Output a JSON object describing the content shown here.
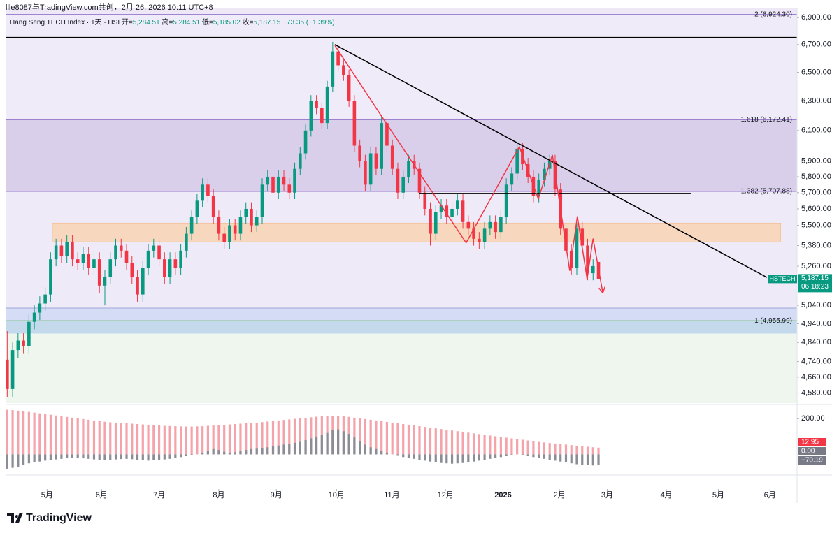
{
  "header": "llle8087与TradingView.com共创，2月 26, 2026 10:11 UTC+8",
  "legend": {
    "name": "Hang Seng TECH Index · 1天 · HSI",
    "items": [
      {
        "label": "开=",
        "value": "5,284.51"
      },
      {
        "label": "高=",
        "value": "5,284.51"
      },
      {
        "label": "低=",
        "value": "5,185.02"
      },
      {
        "label": "收=",
        "value": "5,187.15"
      }
    ],
    "change": "−73.35 (−1.39%)"
  },
  "chart_data": {
    "type": "candlestick",
    "log_scale": true,
    "up_color": "#089981",
    "down_color": "#f23645",
    "xlim": [
      -0.3,
      145.6
    ],
    "ylim": [
      4530,
      6970
    ],
    "xticks": [
      {
        "value": 7.35,
        "label": "5月"
      },
      {
        "value": 17.4,
        "label": "6月"
      },
      {
        "value": 28.0,
        "label": "7月"
      },
      {
        "value": 39.0,
        "label": "8月"
      },
      {
        "value": 49.6,
        "label": "9月"
      },
      {
        "value": 60.7,
        "label": "10月"
      },
      {
        "value": 70.9,
        "label": "11月"
      },
      {
        "value": 80.8,
        "label": "12月"
      },
      {
        "value": 91.4,
        "label": "2026"
      },
      {
        "value": 101.8,
        "label": "2月"
      },
      {
        "value": 110.6,
        "label": "3月"
      },
      {
        "value": 121.5,
        "label": "4月"
      },
      {
        "value": 131.1,
        "label": "5月"
      },
      {
        "value": 140.6,
        "label": "6月"
      }
    ],
    "yticks": [
      {
        "value": 6900,
        "label": "6,900.00"
      },
      {
        "value": 6700,
        "label": "6,700.00"
      },
      {
        "value": 6500,
        "label": "6,500.00"
      },
      {
        "value": 6300,
        "label": "6,300.00"
      },
      {
        "value": 6100,
        "label": "6,100.00"
      },
      {
        "value": 5900,
        "label": "5,900.00"
      },
      {
        "value": 5800,
        "label": "5,800.00"
      },
      {
        "value": 5700,
        "label": "5,700.00"
      },
      {
        "value": 5600,
        "label": "5,600.00"
      },
      {
        "value": 5500,
        "label": "5,500.00"
      },
      {
        "value": 5380,
        "label": "5,380.00"
      },
      {
        "value": 5260,
        "label": "5,260.00"
      },
      {
        "value": 5040,
        "label": "5,040.00"
      },
      {
        "value": 4940,
        "label": "4,940.00"
      },
      {
        "value": 4840,
        "label": "4,840.00"
      },
      {
        "value": 4740,
        "label": "4,740.00"
      },
      {
        "value": 4660,
        "label": "4,660.00"
      },
      {
        "value": 4580,
        "label": "4,580.00"
      }
    ],
    "open": [
      4750,
      4600,
      4800,
      4850,
      4820,
      4950,
      5000,
      5050,
      5100,
      5300,
      5380,
      5320,
      5400,
      5300,
      5280,
      5330,
      5250,
      5300,
      5150,
      5200,
      5300,
      5380,
      5350,
      5280,
      5200,
      5100,
      5250,
      5350,
      5380,
      5300,
      5200,
      5300,
      5250,
      5350,
      5450,
      5550,
      5650,
      5750,
      5680,
      5550,
      5450,
      5400,
      5500,
      5450,
      5550,
      5600,
      5500,
      5550,
      5750,
      5800,
      5700,
      5800,
      5750,
      5700,
      5850,
      5950,
      6100,
      6300,
      6250,
      6150,
      6400,
      6650,
      6550,
      6480,
      6300,
      6000,
      5900,
      5750,
      5950,
      5850,
      6150,
      6000,
      5850,
      5700,
      5800,
      5900,
      5850,
      5700,
      5600,
      5450,
      5580,
      5620,
      5550,
      5600,
      5650,
      5520,
      5480,
      5420,
      5400,
      5480,
      5520,
      5460,
      5550,
      5750,
      5820,
      5980,
      5880,
      5800,
      5680,
      5780,
      5850,
      5900,
      5720,
      5480,
      5350,
      5250,
      5480,
      5380,
      5220,
      5284.51
    ],
    "high": [
      4900,
      4840,
      4890,
      4890,
      4990,
      5040,
      5090,
      5140,
      5340,
      5420,
      5420,
      5440,
      5440,
      5340,
      5370,
      5370,
      5340,
      5340,
      5240,
      5340,
      5420,
      5420,
      5390,
      5320,
      5240,
      5290,
      5390,
      5420,
      5420,
      5340,
      5340,
      5340,
      5390,
      5490,
      5590,
      5690,
      5790,
      5790,
      5720,
      5590,
      5490,
      5540,
      5540,
      5590,
      5640,
      5640,
      5590,
      5790,
      5840,
      5840,
      5840,
      5840,
      5790,
      5890,
      5990,
      6140,
      6340,
      6340,
      6290,
      6440,
      6720,
      6690,
      6590,
      6520,
      6340,
      6040,
      5940,
      5990,
      5990,
      6190,
      6190,
      6040,
      5890,
      5840,
      5940,
      5940,
      5890,
      5740,
      5640,
      5620,
      5660,
      5660,
      5640,
      5690,
      5690,
      5560,
      5520,
      5460,
      5520,
      5560,
      5560,
      5590,
      5790,
      5860,
      6020,
      6020,
      5920,
      5840,
      5820,
      5890,
      5940,
      5940,
      5760,
      5520,
      5390,
      5520,
      5520,
      5420,
      5300,
      5284.51
    ],
    "low": [
      4560,
      4560,
      4760,
      4780,
      4780,
      4910,
      4960,
      5010,
      5060,
      5260,
      5280,
      5280,
      5260,
      5240,
      5240,
      5210,
      5210,
      5110,
      5040,
      5160,
      5260,
      5310,
      5240,
      5160,
      5060,
      5060,
      5210,
      5310,
      5260,
      5160,
      5160,
      5210,
      5210,
      5310,
      5410,
      5510,
      5610,
      5640,
      5510,
      5410,
      5360,
      5360,
      5410,
      5410,
      5510,
      5460,
      5460,
      5510,
      5710,
      5660,
      5660,
      5710,
      5660,
      5660,
      5810,
      5910,
      6060,
      6210,
      6110,
      6110,
      6360,
      6510,
      6440,
      6260,
      5960,
      5860,
      5710,
      5710,
      5810,
      5810,
      5960,
      5810,
      5660,
      5660,
      5760,
      5810,
      5660,
      5560,
      5380,
      5410,
      5540,
      5510,
      5510,
      5560,
      5480,
      5440,
      5380,
      5360,
      5360,
      5440,
      5420,
      5420,
      5510,
      5710,
      5780,
      5840,
      5760,
      5640,
      5640,
      5740,
      5810,
      5680,
      5440,
      5310,
      5210,
      5210,
      5340,
      5180,
      5180,
      5185.02
    ],
    "close": [
      4600,
      4800,
      4850,
      4820,
      4950,
      5000,
      5050,
      5100,
      5300,
      5380,
      5320,
      5400,
      5300,
      5280,
      5330,
      5250,
      5300,
      5150,
      5200,
      5300,
      5380,
      5350,
      5280,
      5200,
      5100,
      5250,
      5350,
      5380,
      5300,
      5200,
      5300,
      5250,
      5350,
      5450,
      5550,
      5650,
      5750,
      5680,
      5550,
      5450,
      5400,
      5500,
      5450,
      5550,
      5600,
      5500,
      5550,
      5750,
      5800,
      5700,
      5800,
      5750,
      5700,
      5850,
      5950,
      6100,
      6300,
      6250,
      6150,
      6400,
      6650,
      6550,
      6480,
      6300,
      6000,
      5900,
      5750,
      5950,
      5850,
      6150,
      6000,
      5850,
      5700,
      5800,
      5900,
      5850,
      5700,
      5600,
      5450,
      5580,
      5620,
      5550,
      5600,
      5650,
      5520,
      5480,
      5420,
      5400,
      5480,
      5520,
      5460,
      5550,
      5750,
      5820,
      5980,
      5880,
      5800,
      5680,
      5780,
      5850,
      5900,
      5720,
      5480,
      5350,
      5250,
      5480,
      5380,
      5220,
      5260.5,
      5187.15
    ],
    "fib_levels": [
      {
        "value": 6924.3,
        "label": "2 (6,924.30)",
        "color": "#9575cd"
      },
      {
        "value": 6172.41,
        "label": "1.618 (6,172.41)",
        "color": "#9575cd"
      },
      {
        "value": 5707.88,
        "label": "1.382 (5,707.88)",
        "color": "#9575cd"
      },
      {
        "value": 5025,
        "label": null,
        "color": "#9fa8da"
      },
      {
        "value": 4955.99,
        "label": "1 (4,955.99)",
        "color": "#66bb6a"
      },
      {
        "value": 4890,
        "label": null,
        "color": "#90caf9"
      }
    ],
    "fib_fills": [
      "#ede7f6",
      "#f0ebf8",
      "#d9cfeb",
      "#efeaf7",
      "#d5dcf5",
      "#c5d9ec",
      "#eef6ee"
    ],
    "zones": [
      {
        "x": [
          8.33,
          142.6
        ],
        "y": [
          5402,
          5514
        ],
        "color": "#f7d8bf"
      }
    ],
    "lines": [
      {
        "x": [
          -0.3,
          145.6
        ],
        "y": [
          6752,
          6752
        ],
        "color": "#000000"
      },
      {
        "x": [
          60.4,
          140.05
        ],
        "y": [
          6700,
          5196
        ],
        "color": "#000000"
      },
      {
        "x": [
          76.0,
          126.0
        ],
        "y": [
          5695,
          5695
        ],
        "color": "#000000"
      },
      {
        "x": [
          60.4,
          68.9,
          84.6,
          94.4,
          97.9,
          100.5,
          103.7,
          105.1,
          106.9,
          108.0,
          109.8
        ],
        "y": [
          6693,
          6202,
          5396,
          5993,
          5661,
          5939,
          5234,
          5554,
          5187,
          5421,
          5109
        ],
        "color": "#f23645",
        "arrow": true
      }
    ],
    "symbol": "HSTECH",
    "last_price": "5,187.15",
    "countdown": "06:18:23",
    "indicator": {
      "ylim": [
        -100,
        260
      ],
      "yticks": [
        {
          "value": 200,
          "label": "200.00"
        }
      ],
      "series": [
        {
          "color": "#f5a3aa",
          "values": [
            250,
            248,
            245,
            242,
            238,
            234,
            230,
            226,
            222,
            218,
            214,
            210,
            206,
            202,
            198,
            194,
            190,
            186,
            183,
            180,
            178,
            176,
            174,
            172,
            170,
            168,
            166,
            164,
            162,
            160,
            159,
            158,
            157,
            156,
            156,
            157,
            158,
            160,
            162,
            164,
            166,
            168,
            170,
            172,
            174,
            176,
            178,
            181,
            184,
            187,
            190,
            193,
            196,
            199,
            202,
            205,
            208,
            211,
            213,
            215,
            216,
            215,
            213,
            210,
            206,
            202,
            198,
            194,
            190,
            186,
            182,
            178,
            174,
            170,
            166,
            162,
            158,
            154,
            150,
            146,
            142,
            138,
            134,
            130,
            126,
            122,
            118,
            114,
            110,
            106,
            102,
            98,
            94,
            90,
            86,
            82,
            78,
            74,
            70,
            67,
            64,
            61,
            58,
            55,
            52,
            49,
            46,
            43,
            40,
            38
          ]
        },
        {
          "color": "#8a8d96",
          "values": [
            -80,
            -75,
            -70,
            -60,
            -50,
            -45,
            -40,
            -35,
            -30,
            -28,
            -25,
            -22,
            -20,
            -20,
            -22,
            -25,
            -28,
            -30,
            -32,
            -30,
            -28,
            -26,
            -25,
            -27,
            -30,
            -33,
            -35,
            -33,
            -30,
            -28,
            -25,
            -20,
            -15,
            -10,
            -5,
            0,
            10,
            20,
            30,
            25,
            15,
            10,
            12,
            18,
            25,
            30,
            32,
            35,
            40,
            45,
            50,
            55,
            60,
            65,
            70,
            80,
            90,
            100,
            110,
            120,
            135,
            140,
            130,
            115,
            95,
            75,
            55,
            40,
            30,
            20,
            10,
            0,
            -8,
            -15,
            -20,
            -25,
            -30,
            -35,
            -40,
            -45,
            -48,
            -50,
            -52,
            -50,
            -48,
            -45,
            -40,
            -35,
            -30,
            -25,
            -20,
            -15,
            -10,
            -5,
            0,
            -5,
            -10,
            -15,
            -20,
            -25,
            -30,
            -35,
            -40,
            -45,
            -50,
            -55,
            -58,
            -60,
            -62,
            -60
          ]
        }
      ],
      "badges": [
        {
          "label": "12.95",
          "color": "#f23645"
        },
        {
          "label": "0.00",
          "color": "#787b86"
        },
        {
          "label": "−70.19",
          "color": "#787b86"
        }
      ]
    }
  },
  "logo": "TradingView"
}
